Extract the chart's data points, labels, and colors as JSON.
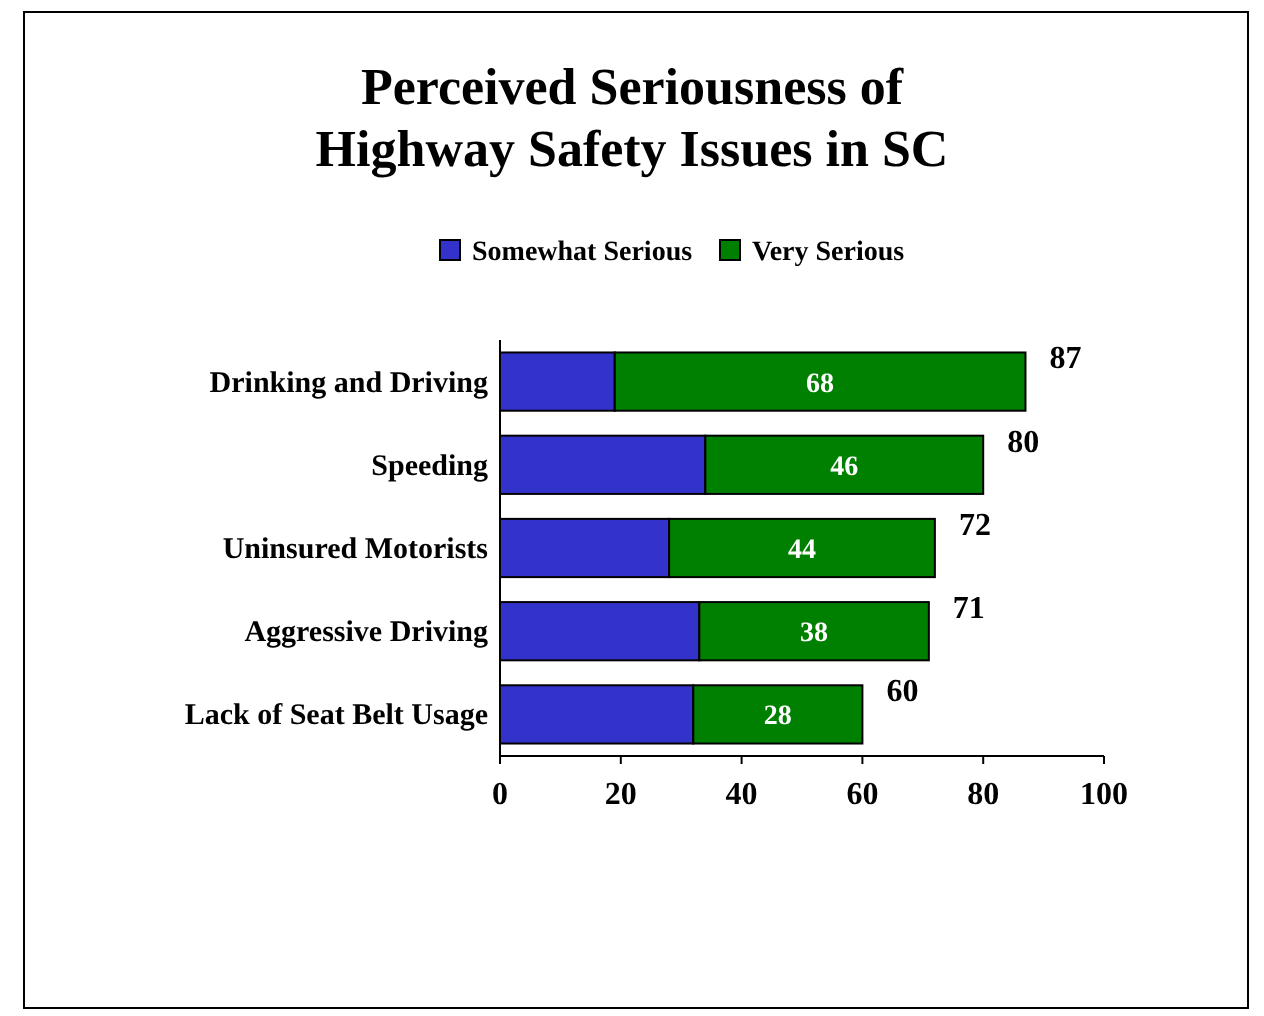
{
  "chart_data": {
    "type": "bar",
    "title": "Perceived Seriousness of Highway Safety Issues in SC",
    "orientation": "horizontal",
    "stacked": true,
    "categories": [
      "Drinking and Driving",
      "Speeding",
      "Uninsured Motorists",
      "Aggressive Driving",
      "Lack of Seat Belt Usage"
    ],
    "series": [
      {
        "name": "Somewhat Serious",
        "color": "#3333cc",
        "values": [
          19,
          34,
          28,
          33,
          32
        ]
      },
      {
        "name": "Very Serious",
        "color": "#008000",
        "values": [
          68,
          46,
          44,
          38,
          28
        ],
        "value_labels": [
          "68",
          "46",
          "44",
          "38",
          "28"
        ]
      }
    ],
    "totals": [
      "87",
      "80",
      "72",
      "71",
      "60"
    ],
    "xlim": [
      0,
      100
    ],
    "xticks": [
      0,
      20,
      40,
      60,
      80,
      100
    ],
    "legend": "top",
    "grid": false
  }
}
